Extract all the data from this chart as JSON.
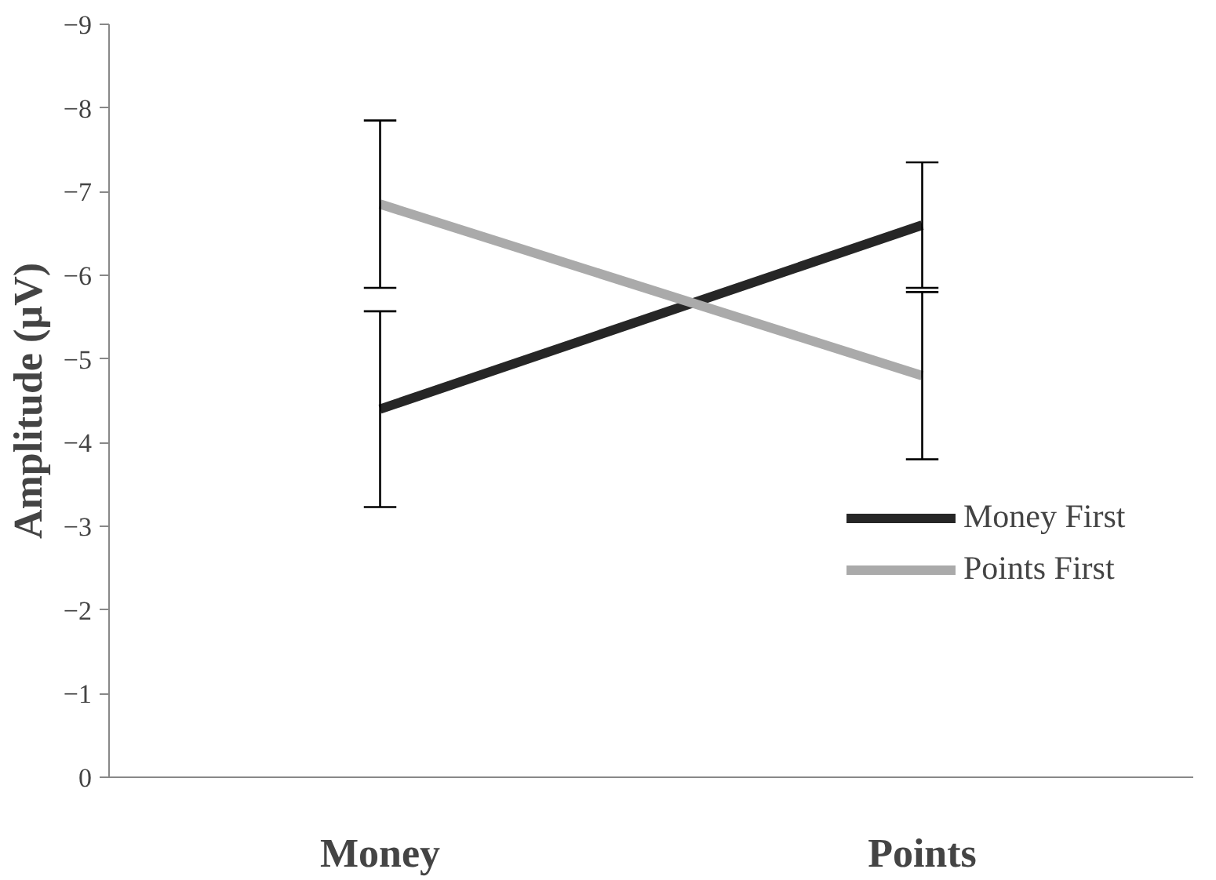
{
  "chart_data": {
    "type": "line",
    "ylabel": "Amplitude (µV)",
    "categories": [
      "Money",
      "Points"
    ],
    "series": [
      {
        "name": "Money First",
        "color": "#262626",
        "values": [
          -4.4,
          -6.6
        ],
        "errors": [
          1.17,
          0.75
        ]
      },
      {
        "name": "Points First",
        "color": "#aaaaaa",
        "values": [
          -6.85,
          -4.8
        ],
        "errors": [
          1.0,
          1.0
        ]
      }
    ],
    "ylim": [
      0,
      -9
    ],
    "yticks": [
      0,
      -1,
      -2,
      -3,
      -4,
      -5,
      -6,
      -7,
      -8,
      -9
    ],
    "grid": false,
    "legend": "right",
    "marker": "none",
    "line_style": "solid"
  }
}
